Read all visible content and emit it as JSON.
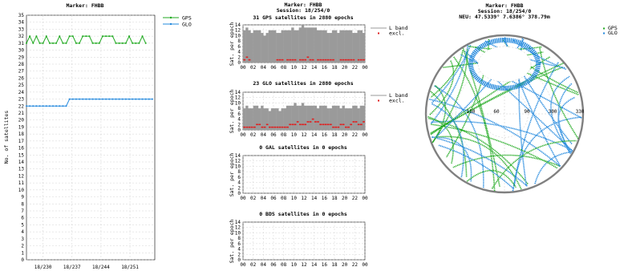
{
  "chart_data": [
    {
      "type": "line",
      "title": "Marker: FHBB",
      "ylabel": "No. of satellites",
      "xlabel": "",
      "ylim": [
        0,
        35
      ],
      "yticks": [
        0,
        1,
        2,
        3,
        4,
        5,
        6,
        7,
        8,
        9,
        10,
        11,
        12,
        13,
        14,
        15,
        16,
        17,
        18,
        19,
        20,
        21,
        22,
        23,
        24,
        25,
        26,
        27,
        28,
        29,
        30,
        31,
        32,
        33,
        34,
        35
      ],
      "xtick_labels": [
        "18/230",
        "18/237",
        "18/244",
        "18/251"
      ],
      "xlim_days": [
        226,
        257
      ],
      "xtick_days": [
        230,
        237,
        244,
        251
      ],
      "grid": true,
      "legend": "top-right",
      "series": [
        {
          "name": "GPS",
          "color": "#22aa22",
          "x": [
            226,
            226.8,
            227.6,
            228.4,
            229.2,
            230,
            230.8,
            231.6,
            232.4,
            233.2,
            234,
            234.8,
            235.6,
            236.4,
            237.2,
            238,
            238.8,
            239.6,
            240.4,
            241.2,
            242,
            242.8,
            243.6,
            244.4,
            245.2,
            246,
            246.8,
            247.6,
            248.4,
            249.2,
            250,
            250.8,
            251.6,
            252.4,
            253.2,
            254,
            254.8
          ],
          "y": [
            31,
            32,
            31,
            32,
            31,
            31,
            32,
            31,
            31,
            31,
            32,
            31,
            31,
            32,
            32,
            31,
            31,
            32,
            32,
            32,
            31,
            31,
            31,
            32,
            32,
            32,
            32,
            31,
            31,
            31,
            31,
            32,
            31,
            31,
            31,
            32,
            31
          ]
        },
        {
          "name": "GLO",
          "color": "#2288dd",
          "x": [
            226,
            226.8,
            227.6,
            228.4,
            229.2,
            230,
            230.8,
            231.6,
            232.4,
            233.2,
            234,
            234.8,
            235.6,
            236.4,
            237.2,
            238,
            238.8,
            239.6,
            240.4,
            241.2,
            242,
            242.8,
            243.6,
            244.4,
            245.2,
            246,
            246.8,
            247.6,
            248.4,
            249.2,
            250,
            250.8,
            251.6,
            252.4,
            253.2,
            254,
            254.8,
            255.6,
            256.4
          ],
          "y": [
            22,
            22,
            22,
            22,
            22,
            22,
            22,
            22,
            22,
            22,
            22,
            22,
            22,
            23,
            23,
            23,
            23,
            23,
            23,
            23,
            23,
            23,
            23,
            23,
            23,
            23,
            23,
            23,
            23,
            23,
            23,
            23,
            23,
            23,
            23,
            23,
            23,
            23,
            23
          ]
        }
      ]
    },
    {
      "type": "bar",
      "header": "Marker: FHBB",
      "subheader": "Session: 18/254/0",
      "title": "31 GPS satellites in 2880 epochs",
      "ylabel": "Sat. per epoch",
      "ylim": [
        0,
        14
      ],
      "yticks": [
        0,
        2,
        4,
        6,
        8,
        10,
        12,
        14
      ],
      "xtick_labels": [
        "00",
        "02",
        "04",
        "06",
        "08",
        "10",
        "12",
        "14",
        "16",
        "18",
        "20",
        "22",
        "00"
      ],
      "legend": [
        "L band",
        "excl."
      ],
      "colors": {
        "band": "#9a9a9a",
        "excl": "#e02020"
      },
      "lband_values": [
        12,
        13,
        12,
        11,
        12,
        12,
        12,
        11,
        10,
        11,
        12,
        12,
        12,
        11,
        11,
        12,
        12,
        12,
        12,
        13,
        12,
        12,
        13,
        14,
        13,
        13,
        13,
        13,
        13,
        12,
        12,
        12,
        12,
        11,
        11,
        12,
        12,
        11,
        12,
        12,
        12,
        12,
        12,
        11,
        11,
        12,
        12,
        11
      ],
      "excl_values": [
        1,
        2,
        1,
        0,
        0,
        0,
        0,
        0,
        0,
        0,
        0,
        0,
        0,
        1,
        1,
        1,
        0,
        1,
        1,
        1,
        1,
        0,
        1,
        1,
        1,
        2,
        1,
        1,
        0,
        1,
        1,
        1,
        1,
        1,
        1,
        1,
        0,
        0,
        1,
        1,
        1,
        1,
        1,
        1,
        0,
        1,
        1,
        1
      ]
    },
    {
      "type": "bar",
      "title": "23 GLO satellites in 2880 epochs",
      "ylabel": "Sat. per epoch",
      "ylim": [
        0,
        14
      ],
      "yticks": [
        0,
        2,
        4,
        6,
        8,
        10,
        12,
        14
      ],
      "xtick_labels": [
        "00",
        "02",
        "04",
        "06",
        "08",
        "10",
        "12",
        "14",
        "16",
        "18",
        "20",
        "22",
        "00"
      ],
      "legend": [
        "L band",
        "excl."
      ],
      "colors": {
        "band": "#9a9a9a",
        "excl": "#e02020"
      },
      "lband_values": [
        8,
        9,
        8,
        8,
        9,
        9,
        8,
        9,
        8,
        8,
        7,
        8,
        8,
        8,
        7,
        8,
        8,
        9,
        9,
        9,
        10,
        9,
        9,
        10,
        9,
        9,
        9,
        9,
        9,
        8,
        9,
        9,
        9,
        8,
        8,
        9,
        9,
        9,
        8,
        9,
        8,
        8,
        8,
        9,
        9,
        8,
        9,
        9
      ],
      "excl_values": [
        1,
        1,
        1,
        1,
        1,
        2,
        2,
        1,
        1,
        2,
        1,
        1,
        1,
        1,
        1,
        1,
        1,
        1,
        2,
        2,
        2,
        3,
        2,
        2,
        2,
        3,
        3,
        4,
        3,
        3,
        2,
        2,
        2,
        2,
        2,
        1,
        1,
        1,
        2,
        2,
        1,
        1,
        2,
        3,
        3,
        2,
        2,
        3
      ]
    },
    {
      "type": "bar",
      "title": "0 GAL satellites in 0 epochs",
      "ylabel": "Sat. per epoch",
      "ylim": [
        0,
        14
      ],
      "yticks": [
        0,
        2,
        4,
        6,
        8,
        10,
        12,
        14
      ],
      "xtick_labels": [
        "00",
        "02",
        "04",
        "06",
        "08",
        "10",
        "12",
        "14",
        "16",
        "18",
        "20",
        "22",
        "00"
      ],
      "lband_values": [],
      "excl_values": []
    },
    {
      "type": "bar",
      "title": "0 BDS satellites in 0 epochs",
      "ylabel": "Sat. per epoch",
      "ylim": [
        0,
        14
      ],
      "yticks": [
        0,
        2,
        4,
        6,
        8,
        10,
        12,
        14
      ],
      "xtick_labels": [
        "00",
        "02",
        "04",
        "06",
        "08",
        "10",
        "12",
        "14",
        "16",
        "18",
        "20",
        "22",
        "00"
      ],
      "lband_values": [],
      "excl_values": []
    },
    {
      "type": "scatter",
      "title": "Marker: FHBB",
      "subtitle": "Session: 18/254/0",
      "coords": "NEU: 47.5339° 7.6386° 378.79m",
      "legend": [
        "GPS",
        "GLO"
      ],
      "colors": {
        "GPS": "#22aa22",
        "GLO": "#2288dd"
      },
      "azimuth_labels": [
        "150",
        "60",
        "90",
        "300",
        "330"
      ]
    }
  ]
}
